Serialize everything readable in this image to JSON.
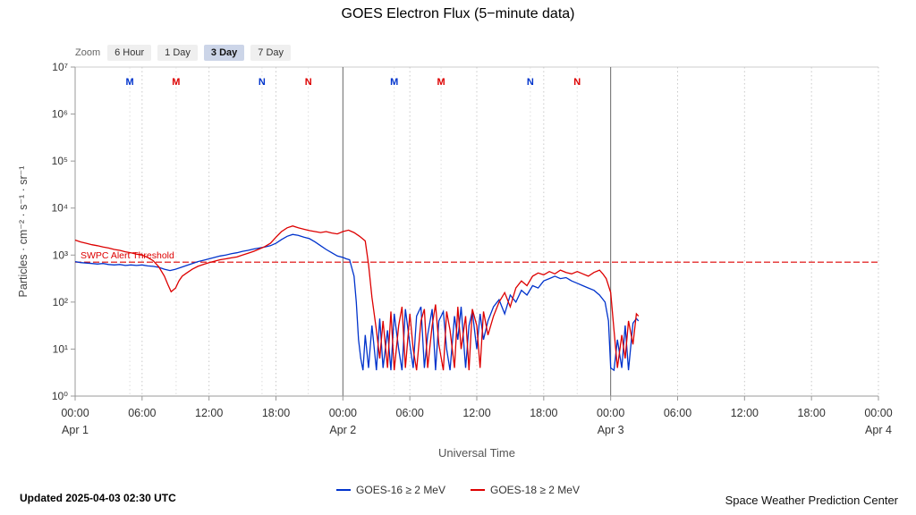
{
  "title": "GOES Electron Flux (5−minute data)",
  "zoom": {
    "label": "Zoom",
    "buttons": [
      {
        "label": "6 Hour",
        "selected": false
      },
      {
        "label": "1 Day",
        "selected": false
      },
      {
        "label": "3 Day",
        "selected": true
      },
      {
        "label": "7 Day",
        "selected": false
      }
    ]
  },
  "legend": {
    "items": [
      {
        "label": "GOES-16 ≥ 2 MeV",
        "color": "#0033cc"
      },
      {
        "label": "GOES-18 ≥ 2 MeV",
        "color": "#dd0000"
      }
    ]
  },
  "footer": {
    "updated": "Updated 2025-04-03 02:30 UTC",
    "source": "Space Weather Prediction Center"
  },
  "chart_data": {
    "type": "line",
    "title": "GOES Electron Flux (5−minute data)",
    "xlabel": "Universal Time",
    "ylabel": "Particles · cm⁻² · s⁻¹ · sr⁻¹",
    "x_range_hours": [
      0,
      72
    ],
    "y_log_range": [
      0,
      7
    ],
    "grid": "vertical-dotted",
    "legend_position": "bottom-center",
    "x_ticks": [
      {
        "t": 0,
        "label": "00:00"
      },
      {
        "t": 6,
        "label": "06:00"
      },
      {
        "t": 12,
        "label": "12:00"
      },
      {
        "t": 18,
        "label": "18:00"
      },
      {
        "t": 24,
        "label": "00:00"
      },
      {
        "t": 30,
        "label": "06:00"
      },
      {
        "t": 36,
        "label": "12:00"
      },
      {
        "t": 42,
        "label": "18:00"
      },
      {
        "t": 48,
        "label": "00:00"
      },
      {
        "t": 54,
        "label": "06:00"
      },
      {
        "t": 60,
        "label": "12:00"
      },
      {
        "t": 66,
        "label": "18:00"
      },
      {
        "t": 72,
        "label": "00:00"
      }
    ],
    "x_dates": [
      {
        "t": 0,
        "label": "Apr 1"
      },
      {
        "t": 24,
        "label": "Apr 2"
      },
      {
        "t": 48,
        "label": "Apr 3"
      },
      {
        "t": 72,
        "label": "Apr 4"
      }
    ],
    "y_ticks": [
      {
        "v": 0,
        "label": "10⁰"
      },
      {
        "v": 1,
        "label": "10¹"
      },
      {
        "v": 2,
        "label": "10²"
      },
      {
        "v": 3,
        "label": "10³"
      },
      {
        "v": 4,
        "label": "10⁴"
      },
      {
        "v": 5,
        "label": "10⁵"
      },
      {
        "v": 6,
        "label": "10⁶"
      },
      {
        "v": 7,
        "label": "10⁷"
      }
    ],
    "threshold": {
      "label": "SWPC Alert Threshold",
      "log_value": 2.85,
      "color": "#dd0000"
    },
    "sat_markers": [
      {
        "t": 4.9,
        "label": "M",
        "color": "#0033cc"
      },
      {
        "t": 9.05,
        "label": "M",
        "color": "#dd0000"
      },
      {
        "t": 16.75,
        "label": "N",
        "color": "#0033cc"
      },
      {
        "t": 20.9,
        "label": "N",
        "color": "#dd0000"
      },
      {
        "t": 28.6,
        "label": "M",
        "color": "#0033cc"
      },
      {
        "t": 32.8,
        "label": "M",
        "color": "#dd0000"
      },
      {
        "t": 40.8,
        "label": "N",
        "color": "#0033cc"
      },
      {
        "t": 45.0,
        "label": "N",
        "color": "#dd0000"
      }
    ],
    "series": [
      {
        "name": "GOES-16 ≥ 2 MeV",
        "color": "#0033cc",
        "points": [
          [
            0,
            2.86
          ],
          [
            0.5,
            2.84
          ],
          [
            1,
            2.83
          ],
          [
            1.5,
            2.82
          ],
          [
            2,
            2.81
          ],
          [
            2.5,
            2.82
          ],
          [
            3,
            2.8
          ],
          [
            3.5,
            2.79
          ],
          [
            4,
            2.8
          ],
          [
            4.5,
            2.78
          ],
          [
            5,
            2.79
          ],
          [
            5.5,
            2.78
          ],
          [
            6,
            2.79
          ],
          [
            6.5,
            2.77
          ],
          [
            7,
            2.76
          ],
          [
            7.5,
            2.74
          ],
          [
            8,
            2.7
          ],
          [
            8.5,
            2.67
          ],
          [
            9,
            2.7
          ],
          [
            9.5,
            2.74
          ],
          [
            10,
            2.78
          ],
          [
            10.5,
            2.82
          ],
          [
            11,
            2.86
          ],
          [
            11.5,
            2.89
          ],
          [
            12,
            2.92
          ],
          [
            12.5,
            2.95
          ],
          [
            13,
            2.98
          ],
          [
            13.5,
            3.0
          ],
          [
            14,
            3.03
          ],
          [
            14.5,
            3.05
          ],
          [
            15,
            3.08
          ],
          [
            15.5,
            3.1
          ],
          [
            16,
            3.13
          ],
          [
            16.5,
            3.15
          ],
          [
            17,
            3.17
          ],
          [
            17.5,
            3.2
          ],
          [
            18,
            3.25
          ],
          [
            18.5,
            3.33
          ],
          [
            19,
            3.4
          ],
          [
            19.5,
            3.44
          ],
          [
            20,
            3.42
          ],
          [
            20.5,
            3.38
          ],
          [
            21,
            3.35
          ],
          [
            21.5,
            3.28
          ],
          [
            22,
            3.2
          ],
          [
            22.5,
            3.12
          ],
          [
            23,
            3.05
          ],
          [
            23.5,
            2.98
          ],
          [
            24,
            2.95
          ],
          [
            24.3,
            2.92
          ],
          [
            24.6,
            2.9
          ],
          [
            25,
            2.55
          ],
          [
            25.2,
            2.0
          ],
          [
            25.4,
            1.2
          ],
          [
            25.6,
            0.8
          ],
          [
            25.8,
            0.55
          ],
          [
            26,
            1.3
          ],
          [
            26.3,
            0.6
          ],
          [
            26.6,
            1.5
          ],
          [
            27,
            0.55
          ],
          [
            27.3,
            1.65
          ],
          [
            27.6,
            0.6
          ],
          [
            28,
            1.4
          ],
          [
            28.3,
            0.55
          ],
          [
            28.6,
            1.75
          ],
          [
            29,
            1.0
          ],
          [
            29.3,
            0.55
          ],
          [
            29.6,
            1.85
          ],
          [
            30,
            1.1
          ],
          [
            30.3,
            0.6
          ],
          [
            30.6,
            1.7
          ],
          [
            31,
            1.9
          ],
          [
            31.3,
            0.6
          ],
          [
            31.6,
            1.3
          ],
          [
            32,
            1.85
          ],
          [
            32.3,
            0.55
          ],
          [
            32.6,
            1.6
          ],
          [
            33,
            1.8
          ],
          [
            33.3,
            1.0
          ],
          [
            33.6,
            0.55
          ],
          [
            34,
            1.7
          ],
          [
            34.3,
            1.2
          ],
          [
            34.6,
            1.9
          ],
          [
            35,
            0.6
          ],
          [
            35.3,
            1.5
          ],
          [
            35.6,
            1.8
          ],
          [
            36,
            1.0
          ],
          [
            36.3,
            1.75
          ],
          [
            36.6,
            1.2
          ],
          [
            37,
            1.6
          ],
          [
            37.5,
            1.9
          ],
          [
            38,
            2.05
          ],
          [
            38.5,
            1.75
          ],
          [
            39,
            2.15
          ],
          [
            39.5,
            2.0
          ],
          [
            40,
            2.25
          ],
          [
            40.5,
            2.15
          ],
          [
            41,
            2.35
          ],
          [
            41.5,
            2.3
          ],
          [
            42,
            2.45
          ],
          [
            42.5,
            2.5
          ],
          [
            43,
            2.55
          ],
          [
            43.5,
            2.5
          ],
          [
            44,
            2.52
          ],
          [
            44.5,
            2.45
          ],
          [
            45,
            2.4
          ],
          [
            45.5,
            2.35
          ],
          [
            46,
            2.3
          ],
          [
            46.5,
            2.25
          ],
          [
            47,
            2.15
          ],
          [
            47.5,
            2.0
          ],
          [
            47.8,
            1.6
          ],
          [
            48,
            0.6
          ],
          [
            48.3,
            0.55
          ],
          [
            48.6,
            1.2
          ],
          [
            49,
            0.6
          ],
          [
            49.3,
            1.5
          ],
          [
            49.6,
            0.55
          ],
          [
            50,
            1.55
          ],
          [
            50.3,
            1.65
          ],
          [
            50.5,
            1.6
          ]
        ]
      },
      {
        "name": "GOES-18 ≥ 2 MeV",
        "color": "#dd0000",
        "points": [
          [
            0,
            3.32
          ],
          [
            0.5,
            3.28
          ],
          [
            1,
            3.25
          ],
          [
            1.5,
            3.22
          ],
          [
            2,
            3.2
          ],
          [
            2.5,
            3.17
          ],
          [
            3,
            3.15
          ],
          [
            3.5,
            3.12
          ],
          [
            4,
            3.1
          ],
          [
            4.5,
            3.07
          ],
          [
            5,
            3.05
          ],
          [
            5.5,
            3.02
          ],
          [
            6,
            3.0
          ],
          [
            6.5,
            2.95
          ],
          [
            7,
            2.88
          ],
          [
            7.5,
            2.75
          ],
          [
            8,
            2.55
          ],
          [
            8.3,
            2.38
          ],
          [
            8.6,
            2.22
          ],
          [
            9,
            2.3
          ],
          [
            9.3,
            2.45
          ],
          [
            9.6,
            2.55
          ],
          [
            10,
            2.62
          ],
          [
            10.5,
            2.7
          ],
          [
            11,
            2.76
          ],
          [
            11.5,
            2.8
          ],
          [
            12,
            2.84
          ],
          [
            12.5,
            2.87
          ],
          [
            13,
            2.9
          ],
          [
            13.5,
            2.92
          ],
          [
            14,
            2.94
          ],
          [
            14.5,
            2.96
          ],
          [
            15,
            3.0
          ],
          [
            15.5,
            3.04
          ],
          [
            16,
            3.08
          ],
          [
            16.5,
            3.13
          ],
          [
            17,
            3.18
          ],
          [
            17.5,
            3.25
          ],
          [
            18,
            3.38
          ],
          [
            18.5,
            3.5
          ],
          [
            19,
            3.58
          ],
          [
            19.5,
            3.62
          ],
          [
            20,
            3.58
          ],
          [
            20.5,
            3.55
          ],
          [
            21,
            3.52
          ],
          [
            21.5,
            3.5
          ],
          [
            22,
            3.48
          ],
          [
            22.5,
            3.5
          ],
          [
            23,
            3.47
          ],
          [
            23.5,
            3.45
          ],
          [
            24,
            3.5
          ],
          [
            24.5,
            3.53
          ],
          [
            25,
            3.48
          ],
          [
            25.5,
            3.4
          ],
          [
            26,
            3.3
          ],
          [
            26.3,
            2.8
          ],
          [
            26.6,
            2.1
          ],
          [
            27,
            1.4
          ],
          [
            27.3,
            0.8
          ],
          [
            27.6,
            1.6
          ],
          [
            28,
            0.6
          ],
          [
            28.3,
            1.8
          ],
          [
            28.6,
            0.55
          ],
          [
            29,
            1.5
          ],
          [
            29.3,
            1.9
          ],
          [
            29.6,
            0.6
          ],
          [
            30,
            1.75
          ],
          [
            30.3,
            1.0
          ],
          [
            30.6,
            0.55
          ],
          [
            31,
            1.6
          ],
          [
            31.3,
            1.85
          ],
          [
            31.6,
            0.6
          ],
          [
            32,
            1.5
          ],
          [
            32.3,
            1.95
          ],
          [
            32.6,
            1.1
          ],
          [
            33,
            0.55
          ],
          [
            33.3,
            1.8
          ],
          [
            33.6,
            1.4
          ],
          [
            34,
            0.6
          ],
          [
            34.3,
            1.9
          ],
          [
            34.6,
            1.0
          ],
          [
            35,
            1.7
          ],
          [
            35.3,
            0.55
          ],
          [
            35.6,
            1.85
          ],
          [
            36,
            1.5
          ],
          [
            36.3,
            0.6
          ],
          [
            36.6,
            1.8
          ],
          [
            37,
            1.3
          ],
          [
            37.5,
            1.7
          ],
          [
            38,
            2.0
          ],
          [
            38.5,
            2.2
          ],
          [
            39,
            1.9
          ],
          [
            39.5,
            2.3
          ],
          [
            40,
            2.45
          ],
          [
            40.5,
            2.35
          ],
          [
            41,
            2.55
          ],
          [
            41.5,
            2.62
          ],
          [
            42,
            2.58
          ],
          [
            42.5,
            2.65
          ],
          [
            43,
            2.6
          ],
          [
            43.5,
            2.68
          ],
          [
            44,
            2.63
          ],
          [
            44.5,
            2.6
          ],
          [
            45,
            2.65
          ],
          [
            45.5,
            2.6
          ],
          [
            46,
            2.55
          ],
          [
            46.5,
            2.63
          ],
          [
            47,
            2.68
          ],
          [
            47.3,
            2.6
          ],
          [
            47.6,
            2.5
          ],
          [
            48,
            2.2
          ],
          [
            48.3,
            1.4
          ],
          [
            48.6,
            0.6
          ],
          [
            49,
            1.3
          ],
          [
            49.3,
            0.8
          ],
          [
            49.6,
            1.6
          ],
          [
            50,
            1.1
          ],
          [
            50.3,
            1.75
          ],
          [
            50.5,
            1.7
          ]
        ]
      }
    ]
  }
}
